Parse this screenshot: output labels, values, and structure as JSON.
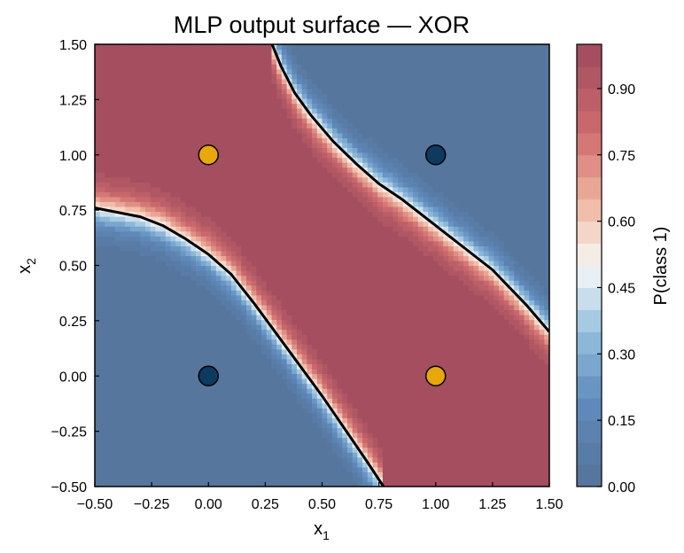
{
  "chart_data": {
    "type": "heatmap",
    "title": "MLP output surface — XOR",
    "xlabel": {
      "base": "x",
      "sub": "1"
    },
    "ylabel": {
      "base": "x",
      "sub": "2"
    },
    "xlim": [
      -0.5,
      1.5
    ],
    "ylim": [
      -0.5,
      1.5
    ],
    "x_ticks": [
      -0.5,
      -0.25,
      0.0,
      0.25,
      0.5,
      0.75,
      1.0,
      1.25,
      1.5
    ],
    "x_tick_labels": [
      "−0.50",
      "−0.25",
      "0.00",
      "0.25",
      "0.50",
      "0.75",
      "1.00",
      "1.25",
      "1.50"
    ],
    "y_ticks": [
      -0.5,
      -0.25,
      0.0,
      0.25,
      0.5,
      0.75,
      1.0,
      1.25,
      1.5
    ],
    "y_tick_labels": [
      "−0.50",
      "−0.25",
      "0.00",
      "0.25",
      "0.50",
      "0.75",
      "1.00",
      "1.25",
      "1.50"
    ],
    "grid": false,
    "colormap": "RdBu_r",
    "contour_levels": 20,
    "decision_boundary_level": 0.5,
    "decision_boundaries": [
      {
        "name": "upper",
        "points": [
          [
            0.28,
            1.5
          ],
          [
            0.32,
            1.4
          ],
          [
            0.38,
            1.28
          ],
          [
            0.45,
            1.18
          ],
          [
            0.55,
            1.06
          ],
          [
            0.65,
            0.96
          ],
          [
            0.75,
            0.87
          ],
          [
            0.85,
            0.8
          ],
          [
            1.0,
            0.68
          ],
          [
            1.1,
            0.6
          ],
          [
            1.25,
            0.48
          ],
          [
            1.4,
            0.32
          ],
          [
            1.5,
            0.2
          ]
        ]
      },
      {
        "name": "lower",
        "points": [
          [
            -0.5,
            0.76
          ],
          [
            -0.4,
            0.74
          ],
          [
            -0.3,
            0.72
          ],
          [
            -0.2,
            0.68
          ],
          [
            -0.1,
            0.62
          ],
          [
            0.0,
            0.55
          ],
          [
            0.1,
            0.46
          ],
          [
            0.2,
            0.33
          ],
          [
            0.3,
            0.19
          ],
          [
            0.4,
            0.05
          ],
          [
            0.5,
            -0.09
          ],
          [
            0.6,
            -0.24
          ],
          [
            0.7,
            -0.39
          ],
          [
            0.77,
            -0.5
          ]
        ]
      }
    ],
    "points": [
      {
        "x": 0,
        "y": 0,
        "class": 0,
        "color": "#0d3a5f"
      },
      {
        "x": 1,
        "y": 1,
        "class": 0,
        "color": "#0d3a5f"
      },
      {
        "x": 0,
        "y": 1,
        "class": 1,
        "color": "#e8a80c"
      },
      {
        "x": 1,
        "y": 0,
        "class": 1,
        "color": "#e8a80c"
      }
    ],
    "colorbar": {
      "label": "P(class 1)",
      "ticks": [
        0.0,
        0.15,
        0.3,
        0.45,
        0.6,
        0.75,
        0.9
      ],
      "tick_labels": [
        "0.00",
        "0.15",
        "0.30",
        "0.45",
        "0.60",
        "0.75",
        "0.90"
      ],
      "range": [
        0,
        1
      ],
      "bins": 20
    },
    "colors": {
      "low": "#547399",
      "high": "#9e4a5e",
      "boundary": "#000000"
    }
  }
}
